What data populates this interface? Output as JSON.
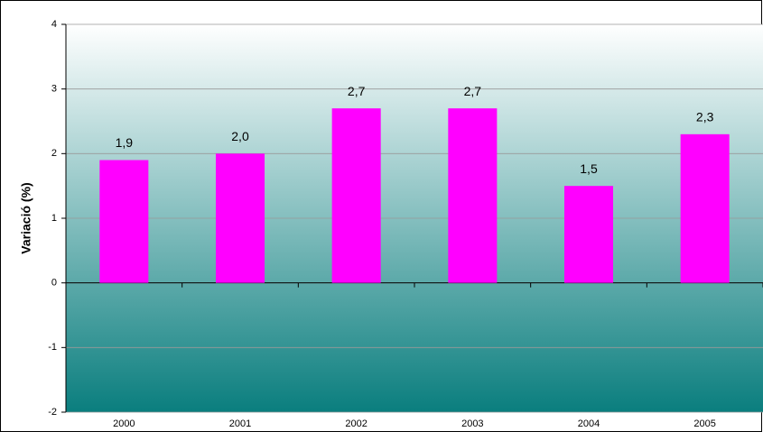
{
  "chart_data": {
    "type": "bar",
    "y_label": "Variació (%)",
    "categories": [
      "2000",
      "2001",
      "2002",
      "2003",
      "2004",
      "2005"
    ],
    "values": [
      1.9,
      2.0,
      2.7,
      2.7,
      1.5,
      2.3
    ],
    "value_labels": [
      "1,9",
      "2,0",
      "2,7",
      "2,7",
      "1,5",
      "2,3"
    ],
    "color": "#ff00ff",
    "ylim": [
      -2,
      4
    ],
    "yticks": [
      -2,
      -1,
      0,
      1,
      2,
      3,
      4
    ],
    "grid": true
  }
}
